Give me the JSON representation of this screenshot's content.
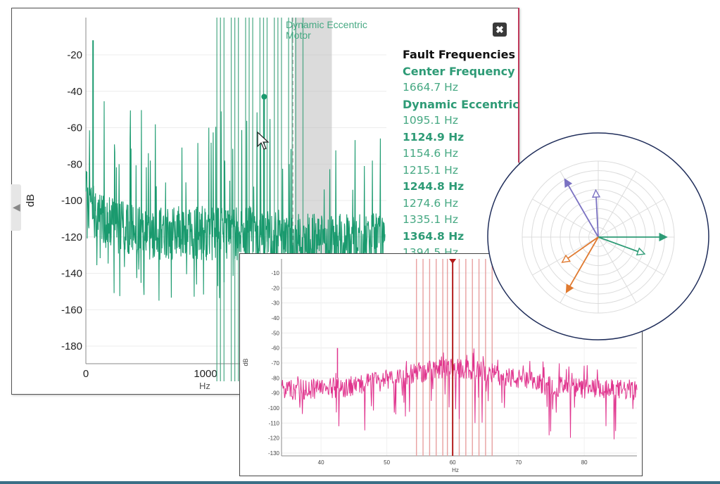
{
  "main_panel": {
    "close_label": "✖",
    "fault_list": {
      "heading": "Fault Frequencies",
      "entries": [
        {
          "text": "Center Frequency",
          "kind": "group"
        },
        {
          "text": "1664.7 Hz",
          "kind": "freq"
        },
        {
          "text": "Dynamic Eccentric",
          "kind": "group"
        },
        {
          "text": "1095.1 Hz",
          "kind": "freq"
        },
        {
          "text": "1124.9 Hz",
          "kind": "freq-bold"
        },
        {
          "text": "1154.6 Hz",
          "kind": "freq"
        },
        {
          "text": "1215.1 Hz",
          "kind": "freq"
        },
        {
          "text": "1244.8 Hz",
          "kind": "freq-bold"
        },
        {
          "text": "1274.6 Hz",
          "kind": "freq"
        },
        {
          "text": "1335.1 Hz",
          "kind": "freq"
        },
        {
          "text": "1364.8 Hz",
          "kind": "freq-bold"
        },
        {
          "text": "1394.5 Hz",
          "kind": "freq"
        }
      ]
    }
  },
  "chart_data": [
    {
      "type": "line",
      "title": "",
      "xlabel": "Hz",
      "ylabel": "dB",
      "xlim": [
        0,
        2500
      ],
      "ylim": [
        -190,
        -10
      ],
      "x_ticks": [
        "0",
        "1000"
      ],
      "y_ticks": [
        "-20",
        "-40",
        "-60",
        "-80",
        "-100",
        "-120",
        "-140",
        "-160",
        "-180"
      ],
      "y_tick_values": [
        -20,
        -40,
        -60,
        -80,
        -100,
        -120,
        -140,
        -160,
        -180
      ],
      "x_tick_values": [
        0,
        1000
      ],
      "series_color": "#1a9a6e",
      "annotation": {
        "text_line1": "Dynamic Eccentric",
        "text_line2": "Motor",
        "x": 1700
      },
      "marker": {
        "x": 1490,
        "y": -43
      },
      "fault_lines_hz": [
        1095.1,
        1124.9,
        1154.6,
        1215.1,
        1244.8,
        1274.6,
        1335.1,
        1364.8,
        1394.5,
        1455,
        1485,
        1514.7,
        1575,
        1605,
        1634.9,
        1694.5,
        1724.3,
        1754,
        1814.6
      ],
      "shaded_band": [
        1750,
        2050
      ],
      "grid": true,
      "legend": "none"
    },
    {
      "type": "line",
      "title": "",
      "xlabel": "Hz",
      "ylabel": "dB",
      "xlim": [
        34,
        88
      ],
      "ylim": [
        -132,
        0
      ],
      "x_ticks": [
        "40",
        "50",
        "60",
        "70",
        "80"
      ],
      "x_tick_values": [
        40,
        50,
        60,
        70,
        80
      ],
      "y_ticks": [
        "-10",
        "-20",
        "-30",
        "-40",
        "-50",
        "-60",
        "-70",
        "-80",
        "-90",
        "-100",
        "-110",
        "-120",
        "-130"
      ],
      "y_tick_values": [
        -10,
        -20,
        -30,
        -40,
        -50,
        -60,
        -70,
        -80,
        -90,
        -100,
        -110,
        -120,
        -130
      ],
      "series_color": "#e0338d",
      "center_line_hz": 60,
      "center_line_color": "#b31b1b",
      "sideband_lines_hz": [
        54.5,
        55.5,
        56.5,
        57.5,
        58.5,
        59.2,
        61,
        62,
        63,
        64,
        65,
        66
      ],
      "grid": true,
      "legend": "none"
    },
    {
      "type": "polar",
      "title": "",
      "rings": 8,
      "spokes_deg": [
        0,
        30,
        60,
        90,
        120,
        150,
        180,
        210,
        240,
        270,
        300,
        330
      ],
      "vectors": [
        {
          "angle_deg": 120,
          "magnitude": 0.88,
          "color": "#7b72c2",
          "head": "filled"
        },
        {
          "angle_deg": 93,
          "magnitude": 0.62,
          "color": "#7b72c2",
          "head": "open"
        },
        {
          "angle_deg": 0,
          "magnitude": 0.9,
          "color": "#2e9b76",
          "head": "filled"
        },
        {
          "angle_deg": -20,
          "magnitude": 0.65,
          "color": "#2e9b76",
          "head": "open"
        },
        {
          "angle_deg": -145,
          "magnitude": 0.58,
          "color": "#e07a30",
          "head": "open"
        },
        {
          "angle_deg": -120,
          "magnitude": 0.84,
          "color": "#e07a30",
          "head": "filled"
        }
      ],
      "legend": "none"
    }
  ]
}
